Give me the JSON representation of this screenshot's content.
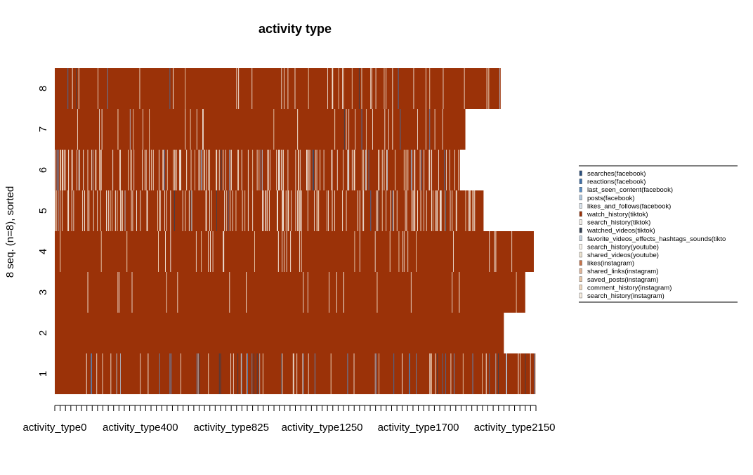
{
  "chart_data": {
    "type": "heatmap",
    "title": "activity type",
    "ylabel": "8 seq. (n=8), sorted",
    "xlabel": "",
    "x_tick_labels": [
      "activity_type0",
      "activity_type400",
      "activity_type825",
      "activity_type1250",
      "activity_type1700",
      "activity_type2150"
    ],
    "x_tick_label_values": [
      0,
      400,
      825,
      1250,
      1700,
      2150
    ],
    "x_minor_tick_step": 25,
    "x_max": 2250,
    "y_tick_labels": [
      "1",
      "2",
      "3",
      "4",
      "5",
      "6",
      "7",
      "8"
    ],
    "legend_position": "right",
    "series": [
      {
        "name": "searches(facebook)",
        "color": "#2A4F7F"
      },
      {
        "name": "reactions(facebook)",
        "color": "#3E6FA8"
      },
      {
        "name": "last_seen_content(facebook)",
        "color": "#5B8EC4"
      },
      {
        "name": "posts(facebook)",
        "color": "#AFC8E0"
      },
      {
        "name": "likes_and_follows(facebook)",
        "color": "#DDE7F0"
      },
      {
        "name": "watch_history(tiktok)",
        "color": "#9B3208"
      },
      {
        "name": "search_history(tiktok)",
        "color": "#F4F0EA"
      },
      {
        "name": "watched_videos(tiktok)",
        "color": "#334155"
      },
      {
        "name": "favorite_videos_effects_hashtags_sounds(tikto",
        "color": "#C7D5E2"
      },
      {
        "name": "search_history(youtube)",
        "color": "#FBF7EE"
      },
      {
        "name": "shared_videos(youtube)",
        "color": "#F0E6D2"
      },
      {
        "name": "likes(instagram)",
        "color": "#C9744A"
      },
      {
        "name": "shared_links(instagram)",
        "color": "#E3B79A"
      },
      {
        "name": "saved_posts(instagram)",
        "color": "#EBC9A8"
      },
      {
        "name": "comment_history(instagram)",
        "color": "#F3DCC2"
      },
      {
        "name": "search_history(instagram)",
        "color": "#FAF1E4"
      }
    ],
    "sequences": [
      {
        "label": "1",
        "length": 2250,
        "base_state": "watch_history(tiktok)"
      },
      {
        "label": "2",
        "length": 2100,
        "base_state": "watch_history(tiktok)"
      },
      {
        "label": "3",
        "length": 2200,
        "base_state": "watch_history(tiktok)"
      },
      {
        "label": "4",
        "length": 2240,
        "base_state": "watch_history(tiktok)"
      },
      {
        "label": "5",
        "length": 2005,
        "base_state": "watch_history(tiktok)"
      },
      {
        "label": "6",
        "length": 1895,
        "base_state": "watch_history(tiktok)"
      },
      {
        "label": "7",
        "length": 1920,
        "base_state": "watch_history(tiktok)"
      },
      {
        "label": "8",
        "length": 2085,
        "base_state": "watch_history(tiktok)"
      }
    ]
  }
}
